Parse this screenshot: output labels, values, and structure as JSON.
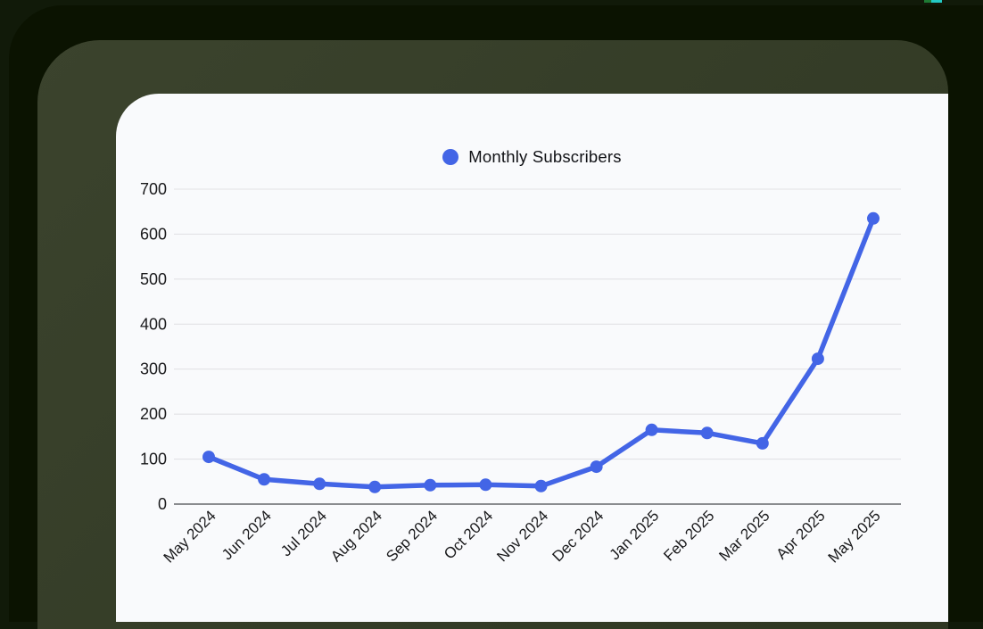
{
  "theme": {
    "page_bg": "#111A09",
    "inner_bg": "#0B1301",
    "frame_bg": "#2F3722",
    "frame_bg2": "#3B432D",
    "card_bg": "#F9FAFC",
    "accent_teal": "#23C9C4",
    "accent_green": "#1E7A34",
    "grid_color": "#E2E2E5",
    "axis_color": "#65676B",
    "tick_text_color": "#19191B",
    "series_blue": "#4365E6"
  },
  "chart_data": {
    "type": "line",
    "title": "",
    "xlabel": "",
    "ylabel": "",
    "legend_position": "top",
    "grid": true,
    "categories": [
      "May 2024",
      "Jun 2024",
      "Jul 2024",
      "Aug 2024",
      "Sep 2024",
      "Oct 2024",
      "Nov 2024",
      "Dec 2024",
      "Jan 2025",
      "Feb 2025",
      "Mar 2025",
      "Apr 2025",
      "May 2025"
    ],
    "series": [
      {
        "name": "Monthly Subscribers",
        "color": "#4365E6",
        "values": [
          105,
          55,
          45,
          38,
          42,
          43,
          40,
          83,
          165,
          158,
          135,
          323,
          635
        ]
      }
    ],
    "ylim": [
      0,
      700
    ],
    "yticks": [
      0,
      100,
      200,
      300,
      400,
      500,
      600,
      700
    ]
  }
}
